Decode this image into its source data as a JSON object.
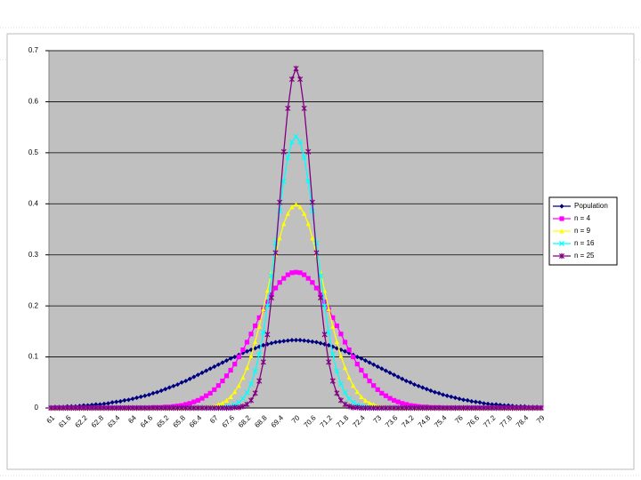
{
  "chart_data": {
    "type": "line",
    "categories": [
      "61",
      null,
      null,
      null,
      "61.6",
      null,
      null,
      null,
      "62.2",
      null,
      null,
      null,
      "62.8",
      null,
      null,
      null,
      "63.4",
      null,
      null,
      null,
      "64",
      null,
      null,
      null,
      "64.6",
      null,
      null,
      null,
      "65.2",
      null,
      null,
      null,
      "65.8",
      null,
      null,
      null,
      "66.4",
      null,
      null,
      null,
      "67",
      null,
      null,
      null,
      "67.6",
      null,
      null,
      null,
      "68.2",
      null,
      null,
      null,
      "68.8",
      null,
      null,
      null,
      "69.4",
      null,
      null,
      null,
      "70",
      null,
      null,
      null,
      "70.6",
      null,
      null,
      null,
      "71.2",
      null,
      null,
      null,
      "71.8",
      null,
      null,
      null,
      "72.4",
      null,
      null,
      null,
      "73",
      null,
      null,
      null,
      "73.6",
      null,
      null,
      null,
      "74.2",
      null,
      null,
      null,
      "74.8",
      null,
      null,
      null,
      "75.4",
      null,
      null,
      null,
      "76",
      null,
      null,
      null,
      "76.6",
      null,
      null,
      null,
      "77.2",
      null,
      null,
      null,
      "77.8",
      null,
      null,
      null,
      "78.4",
      null,
      null,
      null,
      "79"
    ],
    "series": [
      {
        "name": "Population",
        "color": "#000080",
        "marker": "diamond",
        "values": [
          0.001,
          0.002,
          0.002,
          0.002,
          0.003,
          0.003,
          0.003,
          0.004,
          0.005,
          0.005,
          0.006,
          0.007,
          0.007,
          0.008,
          0.009,
          0.011,
          0.012,
          0.013,
          0.015,
          0.016,
          0.018,
          0.02,
          0.022,
          0.024,
          0.026,
          0.029,
          0.031,
          0.034,
          0.037,
          0.04,
          0.043,
          0.046,
          0.05,
          0.053,
          0.057,
          0.061,
          0.065,
          0.069,
          0.073,
          0.077,
          0.081,
          0.085,
          0.089,
          0.093,
          0.097,
          0.1,
          0.104,
          0.108,
          0.111,
          0.114,
          0.117,
          0.12,
          0.123,
          0.125,
          0.127,
          0.129,
          0.13,
          0.131,
          0.132,
          0.133,
          0.133,
          0.133,
          0.132,
          0.131,
          0.13,
          0.129,
          0.127,
          0.125,
          0.123,
          0.12,
          0.117,
          0.114,
          0.111,
          0.108,
          0.104,
          0.1,
          0.097,
          0.093,
          0.089,
          0.085,
          0.081,
          0.077,
          0.073,
          0.069,
          0.065,
          0.061,
          0.057,
          0.053,
          0.05,
          0.046,
          0.043,
          0.04,
          0.037,
          0.034,
          0.031,
          0.029,
          0.026,
          0.024,
          0.022,
          0.02,
          0.018,
          0.016,
          0.015,
          0.013,
          0.012,
          0.011,
          0.009,
          0.008,
          0.007,
          0.007,
          0.006,
          0.005,
          0.005,
          0.004,
          0.003,
          0.003,
          0.003,
          0.002,
          0.002,
          0.002,
          0.001
        ]
      },
      {
        "name": "n = 4",
        "color": "#ff00ff",
        "marker": "square",
        "values": [
          0,
          0,
          0,
          0,
          0,
          0,
          0,
          0,
          0,
          0,
          0,
          0,
          0,
          0,
          0,
          0,
          0,
          0,
          0,
          0,
          0,
          0,
          0,
          0,
          0,
          0.001,
          0.001,
          0.001,
          0.002,
          0.002,
          0.003,
          0.004,
          0.005,
          0.007,
          0.009,
          0.012,
          0.015,
          0.019,
          0.024,
          0.029,
          0.036,
          0.044,
          0.053,
          0.063,
          0.074,
          0.086,
          0.1,
          0.114,
          0.129,
          0.145,
          0.161,
          0.177,
          0.193,
          0.208,
          0.222,
          0.235,
          0.246,
          0.254,
          0.261,
          0.265,
          0.266,
          0.265,
          0.261,
          0.254,
          0.246,
          0.235,
          0.222,
          0.208,
          0.193,
          0.177,
          0.161,
          0.145,
          0.129,
          0.114,
          0.1,
          0.086,
          0.074,
          0.063,
          0.053,
          0.044,
          0.036,
          0.029,
          0.024,
          0.019,
          0.015,
          0.012,
          0.009,
          0.007,
          0.005,
          0.004,
          0.003,
          0.002,
          0.002,
          0.001,
          0.001,
          0.001,
          0,
          0,
          0,
          0,
          0,
          0,
          0,
          0,
          0,
          0,
          0,
          0,
          0,
          0,
          0,
          0,
          0,
          0,
          0,
          0,
          0,
          0,
          0,
          0,
          0
        ]
      },
      {
        "name": "n = 9",
        "color": "#ffff00",
        "marker": "triangle",
        "values": [
          0,
          0,
          0,
          0,
          0,
          0,
          0,
          0,
          0,
          0,
          0,
          0,
          0,
          0,
          0,
          0,
          0,
          0,
          0,
          0,
          0,
          0,
          0,
          0,
          0,
          0,
          0,
          0,
          0,
          0,
          0,
          0,
          0,
          0,
          0,
          0,
          0.001,
          0.001,
          0.002,
          0.003,
          0.004,
          0.007,
          0.01,
          0.015,
          0.022,
          0.032,
          0.044,
          0.06,
          0.079,
          0.102,
          0.13,
          0.16,
          0.194,
          0.23,
          0.266,
          0.301,
          0.333,
          0.361,
          0.381,
          0.394,
          0.399,
          0.394,
          0.381,
          0.361,
          0.333,
          0.301,
          0.266,
          0.23,
          0.194,
          0.16,
          0.13,
          0.102,
          0.079,
          0.06,
          0.044,
          0.032,
          0.022,
          0.015,
          0.01,
          0.007,
          0.004,
          0.003,
          0.002,
          0.001,
          0.001,
          0,
          0,
          0,
          0,
          0,
          0,
          0,
          0,
          0,
          0,
          0,
          0,
          0,
          0,
          0,
          0,
          0,
          0,
          0,
          0,
          0,
          0,
          0,
          0,
          0,
          0,
          0,
          0,
          0,
          0,
          0,
          0,
          0,
          0,
          0,
          0
        ]
      },
      {
        "name": "n = 16",
        "color": "#00ffff",
        "marker": "x",
        "values": [
          0,
          0,
          0,
          0,
          0,
          0,
          0,
          0,
          0,
          0,
          0,
          0,
          0,
          0,
          0,
          0,
          0,
          0,
          0,
          0,
          0,
          0,
          0,
          0,
          0,
          0,
          0,
          0,
          0,
          0,
          0,
          0,
          0,
          0,
          0,
          0,
          0,
          0,
          0,
          0,
          0,
          0,
          0.001,
          0.002,
          0.003,
          0.006,
          0.011,
          0.018,
          0.03,
          0.047,
          0.072,
          0.105,
          0.148,
          0.2,
          0.259,
          0.323,
          0.386,
          0.444,
          0.491,
          0.521,
          0.532,
          0.521,
          0.491,
          0.444,
          0.386,
          0.323,
          0.259,
          0.2,
          0.148,
          0.105,
          0.072,
          0.047,
          0.03,
          0.018,
          0.011,
          0.006,
          0.003,
          0.002,
          0.001,
          0,
          0,
          0,
          0,
          0,
          0,
          0,
          0,
          0,
          0,
          0,
          0,
          0,
          0,
          0,
          0,
          0,
          0,
          0,
          0,
          0,
          0,
          0,
          0,
          0,
          0,
          0,
          0,
          0,
          0,
          0,
          0,
          0,
          0,
          0,
          0,
          0,
          0,
          0,
          0,
          0,
          0
        ]
      },
      {
        "name": "n = 25",
        "color": "#800080",
        "marker": "star",
        "values": [
          0,
          0,
          0,
          0,
          0,
          0,
          0,
          0,
          0,
          0,
          0,
          0,
          0,
          0,
          0,
          0,
          0,
          0,
          0,
          0,
          0,
          0,
          0,
          0,
          0,
          0,
          0,
          0,
          0,
          0,
          0,
          0,
          0,
          0,
          0,
          0,
          0,
          0,
          0,
          0,
          0,
          0,
          0,
          0,
          0,
          0.001,
          0.001,
          0.003,
          0.007,
          0.015,
          0.029,
          0.053,
          0.09,
          0.144,
          0.216,
          0.304,
          0.403,
          0.502,
          0.587,
          0.644,
          0.665,
          0.644,
          0.587,
          0.502,
          0.403,
          0.304,
          0.216,
          0.144,
          0.09,
          0.053,
          0.029,
          0.015,
          0.007,
          0.003,
          0.001,
          0.001,
          0,
          0,
          0,
          0,
          0,
          0,
          0,
          0,
          0,
          0,
          0,
          0,
          0,
          0,
          0,
          0,
          0,
          0,
          0,
          0,
          0,
          0,
          0,
          0,
          0,
          0,
          0,
          0,
          0,
          0,
          0,
          0,
          0,
          0,
          0,
          0,
          0,
          0,
          0,
          0,
          0,
          0,
          0,
          0,
          0
        ]
      }
    ],
    "ylim": [
      0,
      0.7
    ],
    "yticks": [
      0,
      0.1,
      0.2,
      0.3,
      0.4,
      0.5,
      0.6,
      0.7
    ],
    "grid": true,
    "legend": "right",
    "plot_color": "#c0c0c0"
  }
}
